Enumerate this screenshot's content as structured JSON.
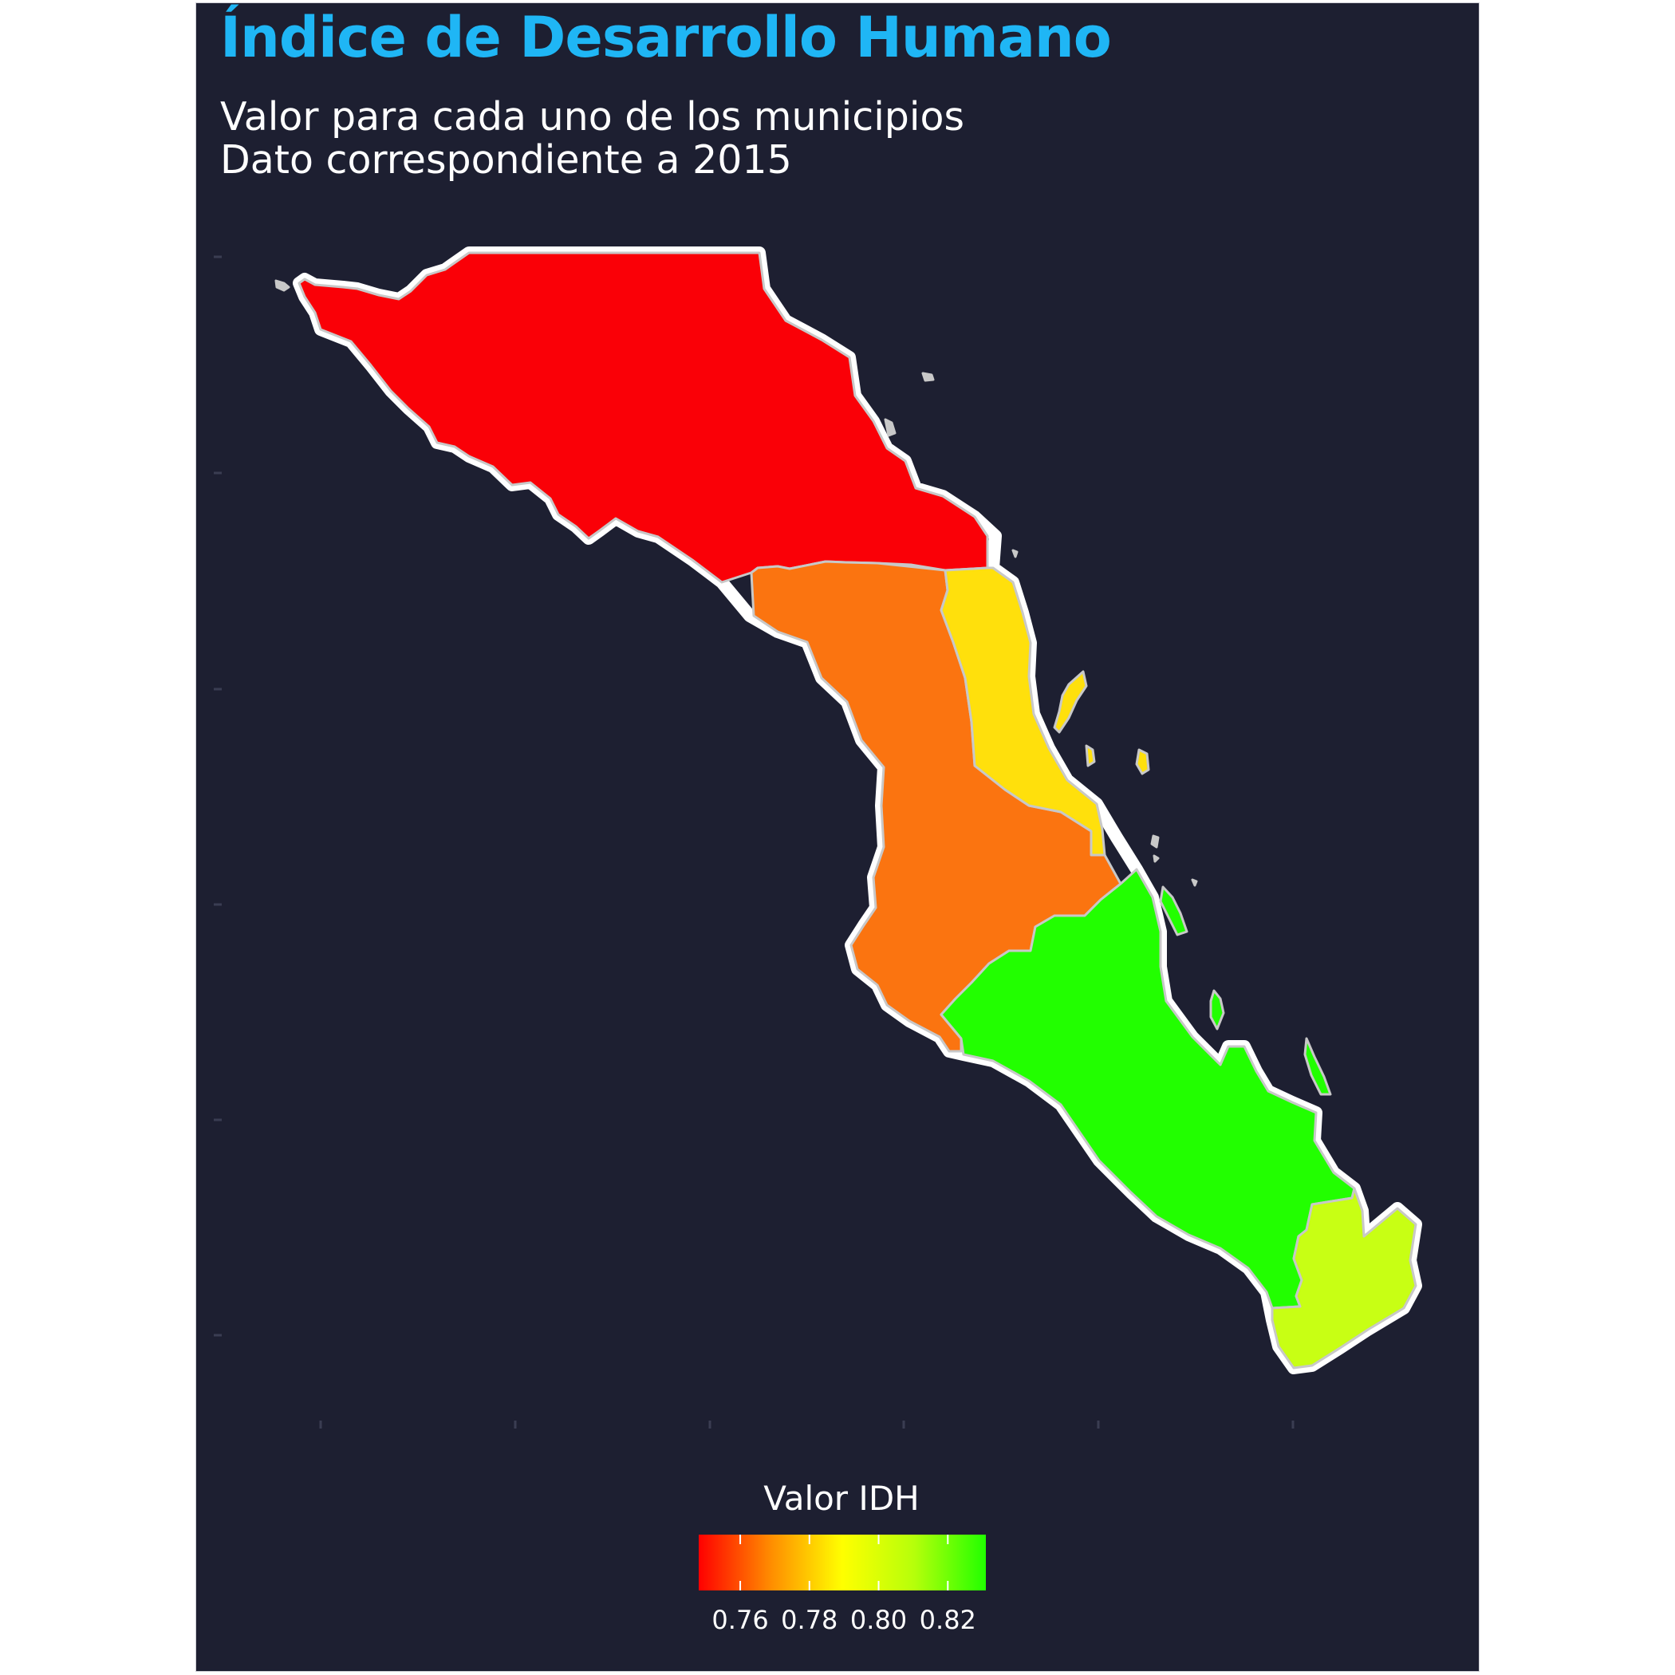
{
  "title": "Índice de Desarrollo Humano",
  "subtitle_lines": [
    "Valor para cada uno de los municipios",
    "Dato correspondiente a 2015"
  ],
  "colors": {
    "background": "#1d1f31",
    "title": "#1fb6f5",
    "text": "#ffffff",
    "outline": "#ffffff",
    "municipio_border": "#c8c8c8"
  },
  "legend": {
    "title": "Valor IDH",
    "gradient_colors": [
      "#ff0000",
      "#ff8c00",
      "#ffff00",
      "#b6ff0a",
      "#22ff00"
    ],
    "range": [
      0.748,
      0.831
    ],
    "ticks": [
      "0.76",
      "0.78",
      "0.80",
      "0.82"
    ],
    "tick_values": [
      0.76,
      0.78,
      0.8,
      0.82
    ]
  },
  "map_data": {
    "type": "choropleth",
    "variable": "IDH",
    "municipios": [
      {
        "id": "norte",
        "value": 0.749,
        "fill": "#fa0007"
      },
      {
        "id": "centro-oeste",
        "value": 0.765,
        "fill": "#fb7410"
      },
      {
        "id": "centro-este",
        "value": 0.784,
        "fill": "#ffe00c"
      },
      {
        "id": "sur",
        "value": 0.831,
        "fill": "#22ff00"
      },
      {
        "id": "cabo",
        "value": 0.808,
        "fill": "#c8ff14"
      }
    ]
  }
}
